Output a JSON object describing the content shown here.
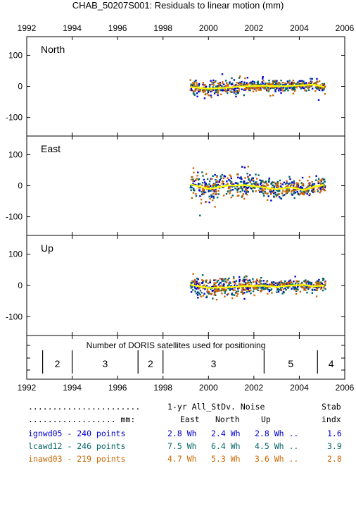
{
  "chart_data": {
    "type": "scatter",
    "title": "CHAB_50207S001: Residuals to linear motion (mm)",
    "x_ticks": [
      "1992",
      "1994",
      "1996",
      "1998",
      "2000",
      "2002",
      "2004",
      "2006"
    ],
    "xlim": [
      1992,
      2006
    ],
    "ylim": [
      -160,
      160
    ],
    "y_ticks": [
      "100",
      "0",
      "-100"
    ],
    "panels": [
      {
        "name": "North",
        "trend": [
          [
            1999.2,
            -2
          ],
          [
            2000.0,
            -8
          ],
          [
            2000.8,
            -4
          ],
          [
            2001.6,
            0
          ],
          [
            2002.4,
            2
          ],
          [
            2003.2,
            0
          ],
          [
            2004.0,
            3
          ],
          [
            2004.6,
            6
          ],
          [
            2005.1,
            -2
          ]
        ]
      },
      {
        "name": "East",
        "trend": [
          [
            1999.2,
            5
          ],
          [
            2000.0,
            -10
          ],
          [
            2000.8,
            0
          ],
          [
            2001.6,
            2
          ],
          [
            2002.4,
            -5
          ],
          [
            2003.0,
            -12
          ],
          [
            2003.6,
            -5
          ],
          [
            2004.2,
            -14
          ],
          [
            2004.6,
            -4
          ],
          [
            2005.1,
            3
          ]
        ]
      },
      {
        "name": "Up",
        "trend": [
          [
            1999.2,
            2
          ],
          [
            2000.0,
            -8
          ],
          [
            2000.8,
            -6
          ],
          [
            2001.6,
            -2
          ],
          [
            2002.4,
            -1
          ],
          [
            2003.0,
            -5
          ],
          [
            2003.6,
            0
          ],
          [
            2004.2,
            2
          ],
          [
            2004.6,
            -3
          ],
          [
            2005.1,
            0
          ]
        ]
      }
    ],
    "series": [
      {
        "name": "ignwd05",
        "color": "#0000cc",
        "points": 240
      },
      {
        "name": "lcawd12",
        "color": "#006666",
        "points": 246
      },
      {
        "name": "inawd03",
        "color": "#cc6600",
        "points": 219
      }
    ],
    "satellites": {
      "label": "Number of DORIS satellites used for positioning",
      "boundaries": [
        1992.7,
        1994.0,
        1996.9,
        1998.0,
        2002.45,
        2004.8
      ],
      "segments": [
        {
          "from": 1992.7,
          "to": 1994.0,
          "count": "2"
        },
        {
          "from": 1994.0,
          "to": 1996.9,
          "count": "3"
        },
        {
          "from": 1996.9,
          "to": 1998.0,
          "count": "2"
        },
        {
          "from": 1998.0,
          "to": 2002.45,
          "count": "3"
        },
        {
          "from": 2002.45,
          "to": 2004.8,
          "count": "5"
        },
        {
          "from": 2004.8,
          "to": 2006.0,
          "count": "4"
        }
      ]
    },
    "trend_color": "#ffff00"
  },
  "stats": {
    "header1": {
      "lead": ".......................",
      "col1": "1-yr All_StDv. Noise",
      "col5": "Stab"
    },
    "header2": {
      "lead": ".................. mm:",
      "east": "East",
      "north": "North",
      "up": "Up",
      "stab": "indx"
    },
    "rows": [
      {
        "label": "ignwd05 - 240 points",
        "east": "2.8 Wh",
        "north": "2.4 Wh",
        "up": "2.8 Wh ..",
        "stab": "1.6",
        "color": "#0000cc"
      },
      {
        "label": "lcawd12 - 246 points",
        "east": "7.5 Wh",
        "north": "6.4 Wh",
        "up": "4.5 Wh ..",
        "stab": "3.9",
        "color": "#006666"
      },
      {
        "label": "inawd03 - 219 points",
        "east": "4.7 Wh",
        "north": "5.3 Wh",
        "up": "3.6 Wh ..",
        "stab": "2.8",
        "color": "#cc6600"
      }
    ]
  }
}
